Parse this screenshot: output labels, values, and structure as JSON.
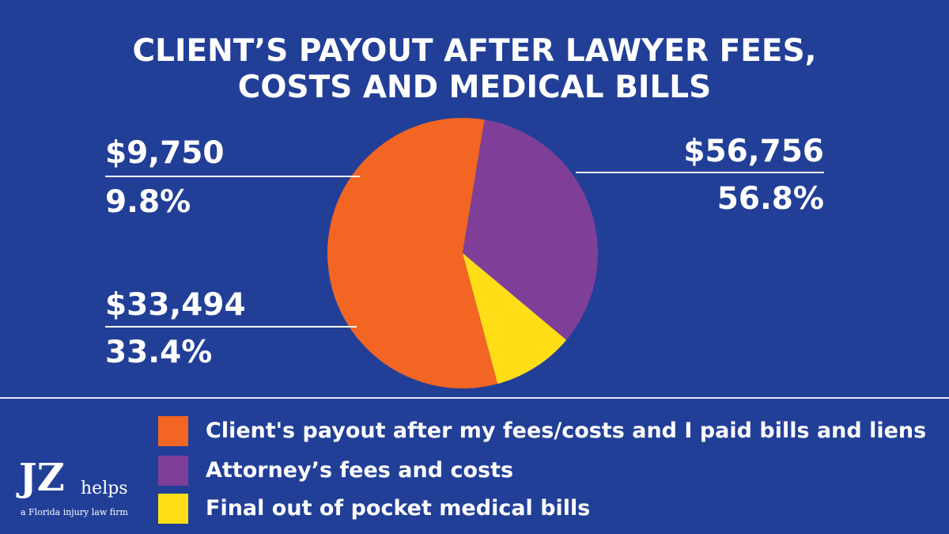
{
  "title_lines": [
    "CLIENT’S PAYOUT AFTER LAWYER FEES,",
    "COSTS AND MEDICAL BILLS"
  ],
  "chart_data": {
    "type": "pie",
    "title": "CLIENT’S PAYOUT AFTER LAWYER FEES, COSTS AND MEDICAL BILLS",
    "slices": [
      {
        "label": "Client's payout after my fees/costs and I paid bills and liens",
        "value": 56756,
        "percent": 56.8,
        "value_label": "$56,756",
        "percent_label": "56.8%",
        "color": "#f26522"
      },
      {
        "label": "Attorney’s fees and costs",
        "value": 33494,
        "percent": 33.4,
        "value_label": "$33,494",
        "percent_label": "33.4%",
        "color": "#7f3f98"
      },
      {
        "label": "Final out of pocket medical bills",
        "value": 9750,
        "percent": 9.8,
        "value_label": "$9,750",
        "percent_label": "9.8%",
        "color": "#ffde17"
      }
    ],
    "legend_position": "bottom"
  },
  "logo": {
    "mark": "JZ",
    "word": "helps",
    "tagline": "a Florida injury law firm"
  },
  "colors": {
    "background": "#223f98",
    "text": "#ffffff"
  }
}
